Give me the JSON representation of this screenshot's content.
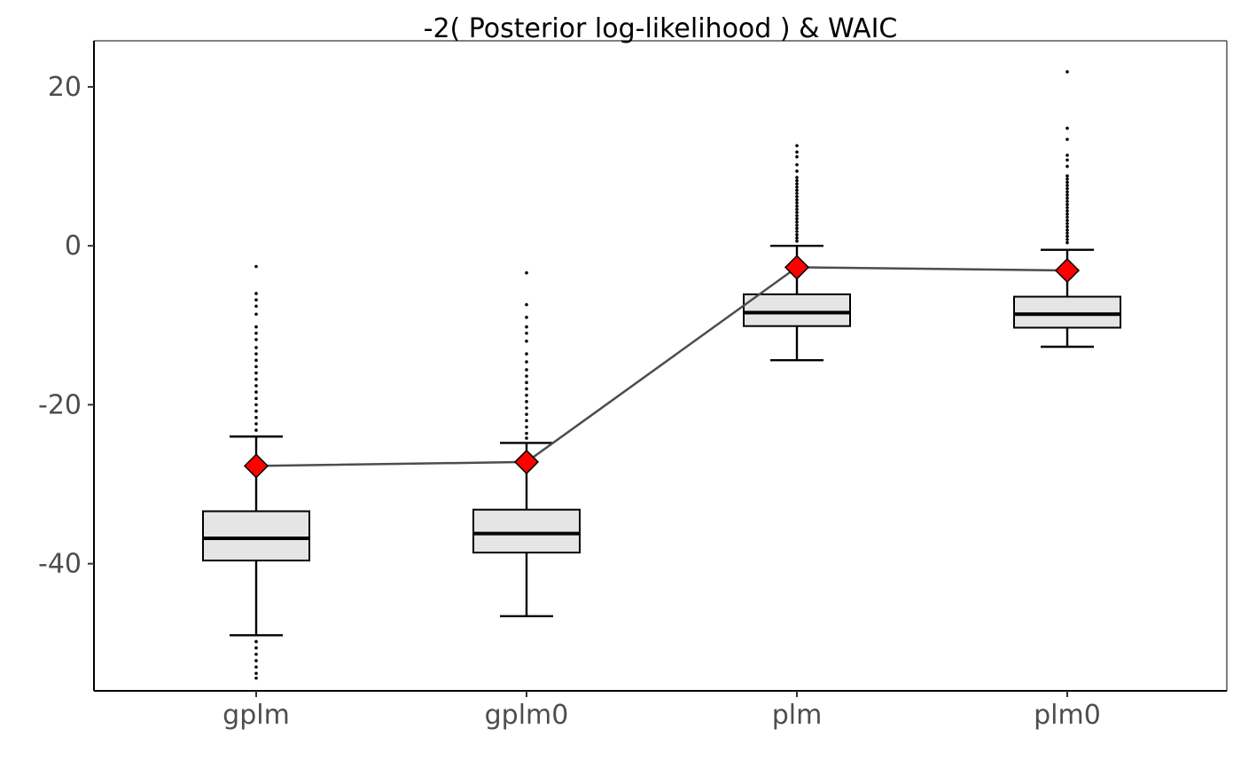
{
  "chart_data": {
    "type": "box",
    "title": "-2( Posterior log-likelihood ) & WAIC",
    "xlabel": "",
    "ylabel": "",
    "categories": [
      "gplm",
      "gplm0",
      "plm",
      "plm0"
    ],
    "ylim": [
      -56,
      25.8
    ],
    "yticks": [
      20,
      0,
      -20,
      -40
    ],
    "ytick_labels": [
      "20",
      "0",
      "-20",
      "-40"
    ],
    "grid": false,
    "boxes": [
      {
        "category": "gplm",
        "whisker_low": -49.0,
        "q1": -39.6,
        "median": -36.8,
        "q3": -33.4,
        "whisker_high": -24.0,
        "outliers": [
          -2.6,
          -6.0,
          -6.8,
          -7.6,
          -8.6,
          -10.2,
          -11.0,
          -11.8,
          -12.8,
          -13.6,
          -14.4,
          -15.2,
          -16.0,
          -16.8,
          -17.6,
          -18.4,
          -19.2,
          -20.0,
          -20.8,
          -21.6,
          -22.4,
          -23.2,
          -49.8,
          -50.6,
          -51.4,
          -52.2,
          -53.0,
          -53.8,
          -54.4
        ]
      },
      {
        "category": "gplm0",
        "whisker_low": -46.6,
        "q1": -38.6,
        "median": -36.2,
        "q3": -33.2,
        "whisker_high": -24.8,
        "outliers": [
          -3.4,
          -7.4,
          -9.0,
          -10.2,
          -11.0,
          -12.0,
          -13.6,
          -14.6,
          -15.6,
          -16.4,
          -17.2,
          -18.0,
          -18.8,
          -19.6,
          -20.4,
          -21.2,
          -22.0,
          -22.8,
          -23.6,
          -24.2
        ]
      },
      {
        "category": "plm",
        "whisker_low": -14.4,
        "q1": -10.1,
        "median": -8.4,
        "q3": -6.1,
        "whisker_high": 0.0,
        "outliers": [
          12.6,
          11.8,
          11.2,
          10.2,
          9.4,
          8.6,
          8.2,
          7.8,
          7.4,
          7.0,
          6.6,
          6.2,
          5.8,
          5.4,
          5.0,
          4.6,
          4.2,
          3.8,
          3.4,
          3.0,
          2.6,
          2.2,
          1.8,
          1.4,
          1.0,
          0.6
        ]
      },
      {
        "category": "plm0",
        "whisker_low": -12.7,
        "q1": -10.3,
        "median": -8.6,
        "q3": -6.4,
        "whisker_high": -0.5,
        "outliers": [
          21.9,
          14.8,
          13.4,
          11.4,
          10.8,
          10.0,
          8.8,
          8.4,
          8.0,
          7.6,
          7.2,
          6.8,
          6.4,
          6.0,
          5.6,
          5.2,
          4.8,
          4.4,
          4.0,
          3.6,
          3.2,
          2.8,
          2.4,
          2.0,
          1.6,
          1.2,
          0.8,
          0.4
        ]
      }
    ],
    "waic": {
      "values": [
        -27.7,
        -27.2,
        -2.7,
        -3.1
      ],
      "marker": "diamond",
      "marker_color": "#ff0000",
      "line_color": "#4d4d4d"
    },
    "box_fill": "#e5e5e5",
    "box_stroke": "#000000"
  }
}
